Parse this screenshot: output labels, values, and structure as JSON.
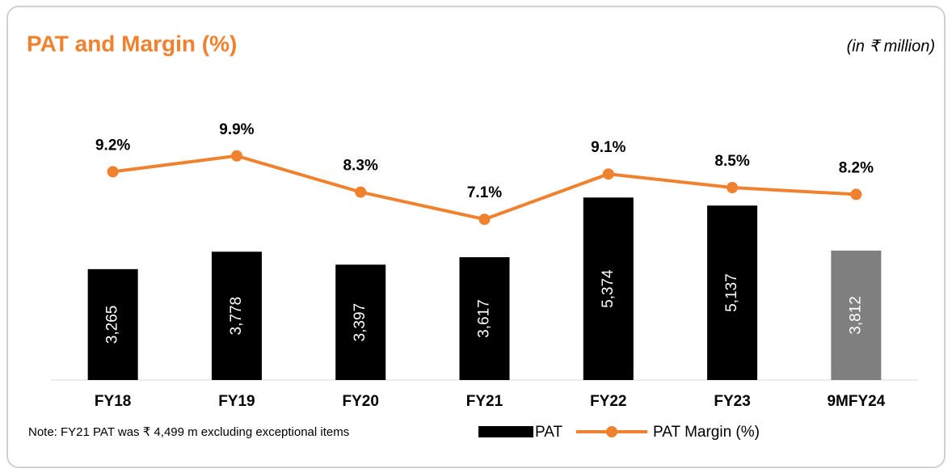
{
  "chart_data": {
    "type": "bar",
    "title": "PAT and Margin (%)",
    "subtitle": "(in ₹ million)",
    "note": "Note: FY21 PAT was ₹ 4,499 m excluding exceptional items",
    "categories": [
      "FY18",
      "FY19",
      "FY20",
      "FY21",
      "FY22",
      "FY23",
      "9MFY24"
    ],
    "series": [
      {
        "name": "PAT",
        "type": "bar",
        "color": "#000000",
        "colors": [
          "#000000",
          "#000000",
          "#000000",
          "#000000",
          "#000000",
          "#000000",
          "#7f7f7f"
        ],
        "values": [
          3265,
          3778,
          3397,
          3617,
          5374,
          5137,
          3812
        ],
        "value_labels": [
          "3,265",
          "3,778",
          "3,397",
          "3,617",
          "5,374",
          "5,137",
          "3,812"
        ]
      },
      {
        "name": "PAT Margin (%)",
        "type": "line",
        "axis": "y2",
        "color": "#f0812e",
        "values": [
          9.2,
          9.9,
          8.3,
          7.1,
          9.1,
          8.5,
          8.2
        ],
        "value_labels": [
          "9.2%",
          "9.9%",
          "8.3%",
          "7.1%",
          "9.1%",
          "8.5%",
          "8.2%"
        ]
      }
    ],
    "ylim": [
      0,
      8000
    ],
    "y2lim": [
      0,
      12
    ],
    "legend": "bottom"
  }
}
